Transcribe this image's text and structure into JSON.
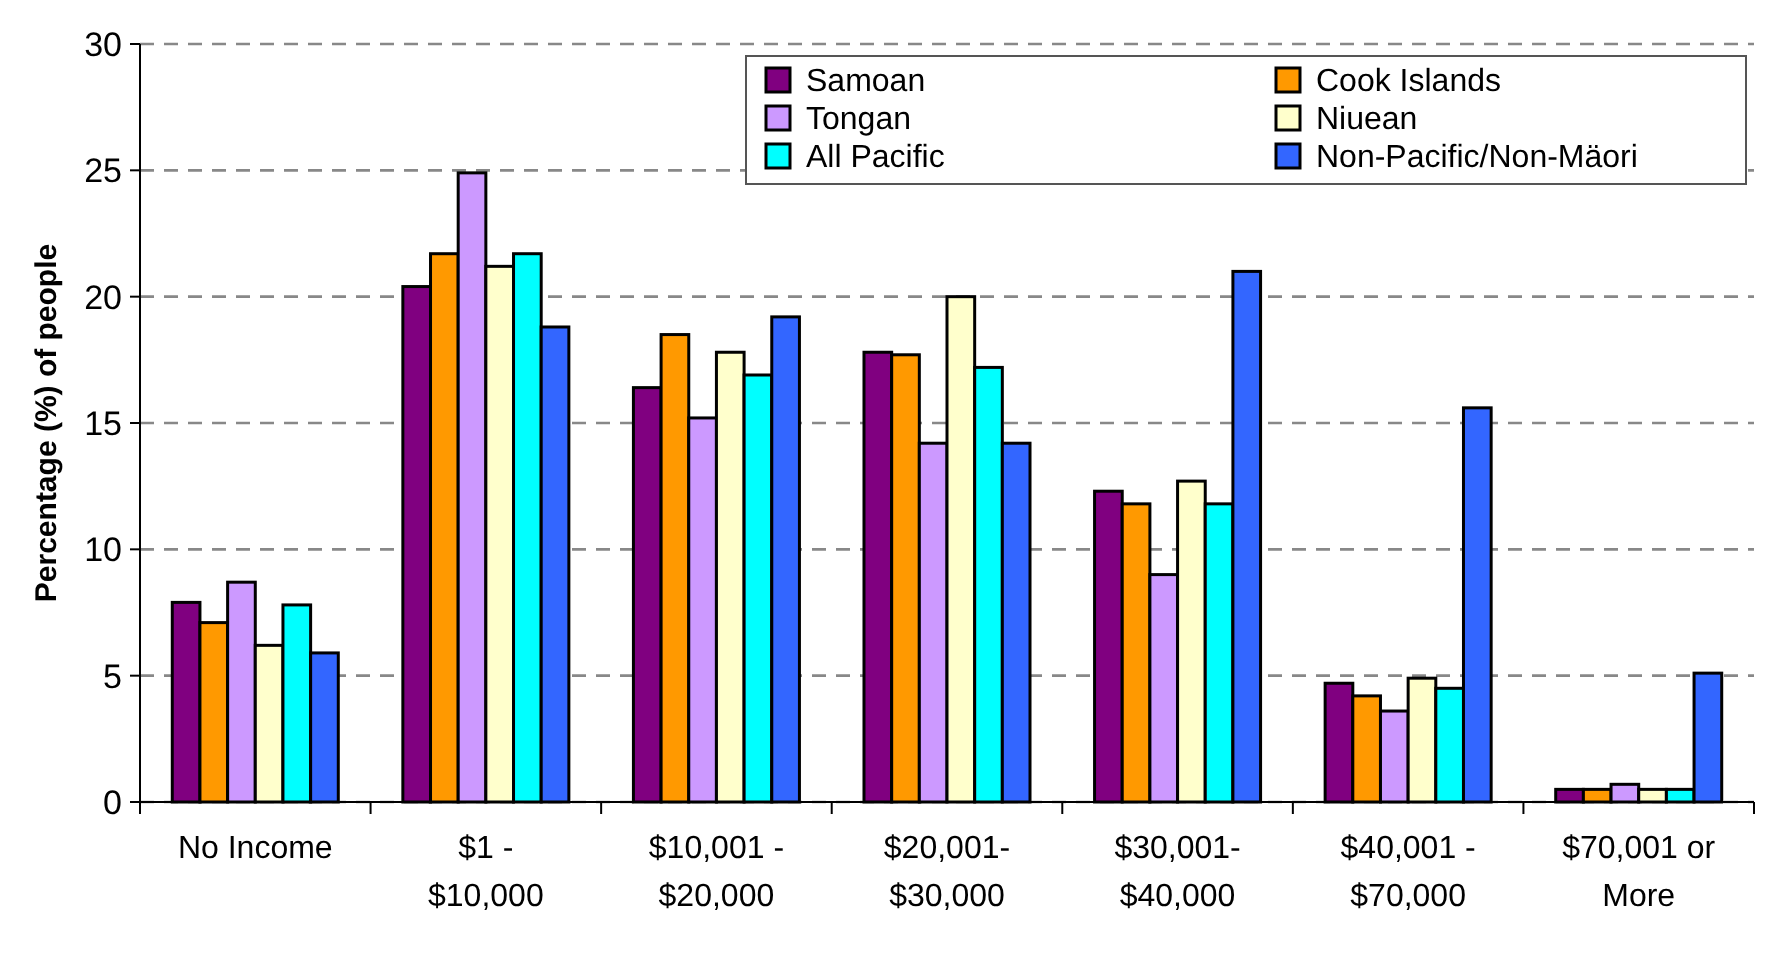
{
  "chart_data": {
    "type": "bar",
    "ylabel": "Percentage (%) of people",
    "categories": [
      "No Income",
      "$1 - $10,000",
      "$10,001 - $20,000",
      "$20,001-$30,000",
      "$30,001-$40,000",
      "$40,001 - $70,000",
      "$70,001 or More"
    ],
    "series": [
      {
        "name": "Samoan",
        "color": "#800080",
        "values": [
          7.9,
          20.4,
          16.4,
          17.8,
          12.3,
          4.7,
          0.5
        ]
      },
      {
        "name": "Cook Islands",
        "color": "#ff9900",
        "values": [
          7.1,
          21.7,
          18.5,
          17.7,
          11.8,
          4.2,
          0.5
        ]
      },
      {
        "name": "Tongan",
        "color": "#cc99ff",
        "values": [
          8.7,
          24.9,
          15.2,
          14.2,
          9.0,
          3.6,
          0.7
        ]
      },
      {
        "name": "Niuean",
        "color": "#ffffcc",
        "values": [
          6.2,
          21.2,
          17.8,
          20.0,
          12.7,
          4.9,
          0.5
        ]
      },
      {
        "name": "All Pacific",
        "color": "#00ffff",
        "values": [
          7.8,
          21.7,
          16.9,
          17.2,
          11.8,
          4.5,
          0.5
        ]
      },
      {
        "name": "Non-Pacific/Non-Mäori",
        "color": "#3366ff",
        "values": [
          5.9,
          18.8,
          19.2,
          14.2,
          21.0,
          15.6,
          5.1
        ]
      }
    ],
    "ylim": [
      0,
      30
    ],
    "yticks": [
      0,
      5,
      10,
      15,
      20,
      25,
      30
    ],
    "grid": "y",
    "legend": "top right"
  }
}
